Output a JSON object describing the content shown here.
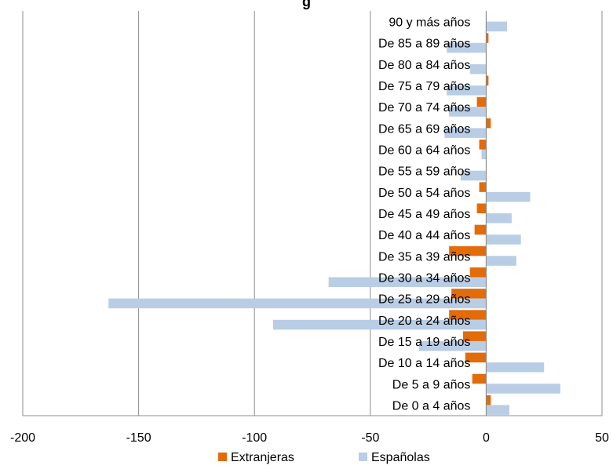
{
  "chart_data": {
    "type": "bar",
    "orientation": "horizontal",
    "title": "g",
    "categories": [
      "90 y más años",
      "De 85 a 89 años",
      "De 80 a 84 años",
      "De 75 a 79 años",
      "De 70 a 74 años",
      "De 65 a 69 años",
      "De 60 a 64 años",
      "De 55 a 59 años",
      "De 50 a 54 años",
      "De 45 a 49 años",
      "De 40 a 44 años",
      "De 35 a 39 años",
      "De 30 a 34 años",
      "De 25 a 29 años",
      "De 20 a 24 años",
      "De 15 a 19 años",
      "De 10 a 14 años",
      "De 5 a 9 años",
      "De 0 a 4 años"
    ],
    "series": [
      {
        "name": "Extranjeras",
        "color": "#e26b0a",
        "values": [
          0,
          1,
          0,
          1,
          -4,
          2,
          -3,
          0,
          -3,
          -4,
          -5,
          -16,
          -7,
          -15,
          -16,
          -10,
          -9,
          -6,
          2
        ]
      },
      {
        "name": "Españolas",
        "color": "#b9cde5",
        "values": [
          9,
          -17,
          -7,
          -17,
          -16,
          -18,
          -2,
          -11,
          19,
          11,
          15,
          13,
          -68,
          -163,
          -92,
          -29,
          25,
          32,
          10
        ]
      }
    ],
    "x_axis": {
      "min": -200,
      "max": 50,
      "ticks": [
        -200,
        -150,
        -100,
        -50,
        0,
        50
      ]
    },
    "grid": true,
    "legend": "bottom"
  }
}
